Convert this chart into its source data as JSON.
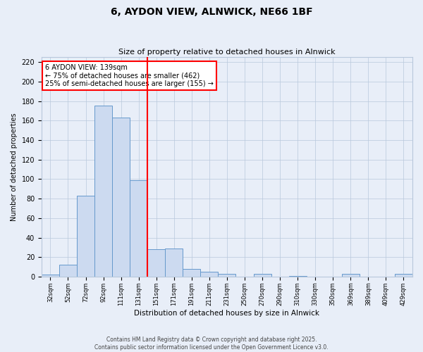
{
  "title": "6, AYDON VIEW, ALNWICK, NE66 1BF",
  "subtitle": "Size of property relative to detached houses in Alnwick",
  "xlabel": "Distribution of detached houses by size in Alnwick",
  "ylabel": "Number of detached properties",
  "bar_values": [
    2,
    12,
    83,
    175,
    163,
    99,
    28,
    29,
    8,
    5,
    3,
    0,
    3,
    0,
    1,
    0,
    0,
    3,
    0,
    0,
    3
  ],
  "tick_labels": [
    "32sqm",
    "52sqm",
    "72sqm",
    "92sqm",
    "111sqm",
    "131sqm",
    "151sqm",
    "171sqm",
    "191sqm",
    "211sqm",
    "231sqm",
    "250sqm",
    "270sqm",
    "290sqm",
    "310sqm",
    "330sqm",
    "350sqm",
    "369sqm",
    "389sqm",
    "409sqm",
    "429sqm"
  ],
  "bar_color": "#ccdaf0",
  "bar_edge_color": "#6699cc",
  "vline_color": "red",
  "vline_x": 5.5,
  "ylim": [
    0,
    225
  ],
  "yticks": [
    0,
    20,
    40,
    60,
    80,
    100,
    120,
    140,
    160,
    180,
    200,
    220
  ],
  "annotation_title": "6 AYDON VIEW: 139sqm",
  "annotation_line1": "← 75% of detached houses are smaller (462)",
  "annotation_line2": "25% of semi-detached houses are larger (155) →",
  "annotation_box_color": "white",
  "annotation_box_edge": "red",
  "footer1": "Contains HM Land Registry data © Crown copyright and database right 2025.",
  "footer2": "Contains public sector information licensed under the Open Government Licence v3.0.",
  "background_color": "#e8eef8",
  "grid_color": "#b8c8dc",
  "title_fontsize": 10,
  "subtitle_fontsize": 8,
  "xlabel_fontsize": 7.5,
  "ylabel_fontsize": 7,
  "xtick_fontsize": 6,
  "ytick_fontsize": 7,
  "footer_fontsize": 5.5,
  "annot_fontsize": 7
}
